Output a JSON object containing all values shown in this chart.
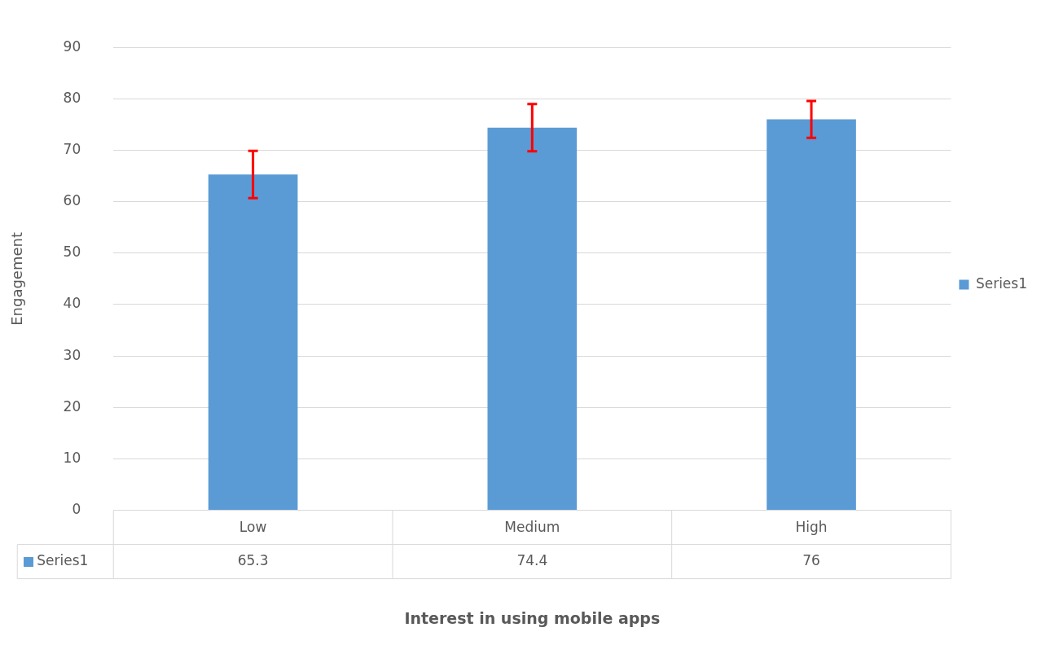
{
  "chart_data": {
    "type": "bar",
    "xlabel": "Interest in using mobile apps",
    "ylabel": "Engagement",
    "categories": [
      "Low",
      "Medium",
      "High"
    ],
    "series": [
      {
        "name": "Series1",
        "color": "#5b9bd5",
        "values": [
          65.3,
          74.4,
          76
        ],
        "errors": [
          4.6,
          4.6,
          3.6
        ]
      }
    ],
    "ylim": [
      0,
      90
    ],
    "yticks": [
      0,
      10,
      20,
      30,
      40,
      50,
      60,
      70,
      80,
      90
    ],
    "grid": "y",
    "legend": "right",
    "data_labels": true
  }
}
